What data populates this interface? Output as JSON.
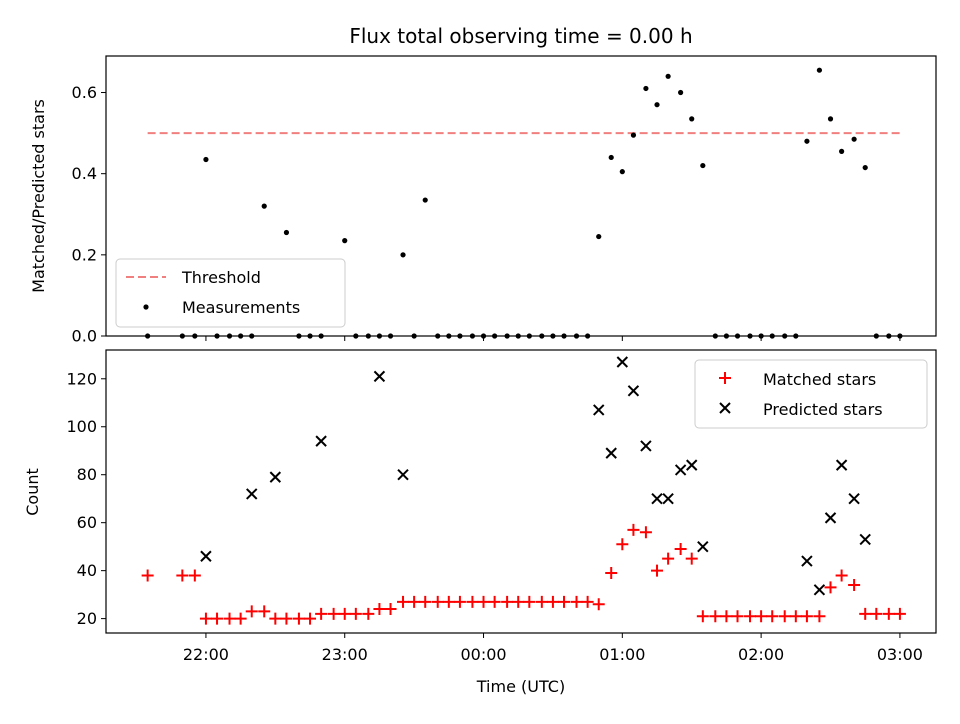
{
  "chart_data": [
    {
      "type": "scatter",
      "title": "Flux total observing time = 0.00 h",
      "xlabel": "",
      "ylabel": "Matched/Predicted stars",
      "ylim": [
        0,
        0.69
      ],
      "xlim": [
        -2.72,
        3.26
      ],
      "yticks": [
        "0.0",
        "0.2",
        "0.4",
        "0.6"
      ],
      "legend": {
        "placement": "lower-left",
        "entries": [
          "Threshold",
          "Measurements"
        ]
      },
      "threshold": {
        "name": "Threshold",
        "value": 0.5,
        "x_start": -2.42,
        "x_end": 3.0,
        "color": "#f08080",
        "style": "dashed"
      },
      "series": [
        {
          "name": "Measurements",
          "color": "#000000",
          "x": [
            -2.42,
            -2.17,
            -2.08,
            -2.0,
            -1.92,
            -1.83,
            -1.75,
            -1.67,
            -1.58,
            -1.42,
            -1.33,
            -1.25,
            -1.17,
            -1.0,
            -0.92,
            -0.83,
            -0.75,
            -0.67,
            -0.58,
            -0.5,
            -0.42,
            -0.33,
            -0.25,
            -0.17,
            -0.08,
            0.0,
            0.08,
            0.17,
            0.25,
            0.33,
            0.42,
            0.5,
            0.58,
            0.67,
            0.75,
            0.83,
            0.92,
            1.0,
            1.08,
            1.17,
            1.25,
            1.33,
            1.42,
            1.5,
            1.58,
            1.67,
            1.75,
            1.83,
            1.92,
            2.0,
            2.08,
            2.17,
            2.25,
            2.33,
            2.42,
            2.5,
            2.58,
            2.67,
            2.75,
            2.83,
            2.92,
            3.0
          ],
          "y": [
            0,
            0,
            0,
            0.435,
            0,
            0,
            0,
            0,
            0.32,
            0.255,
            0,
            0,
            0,
            0.235,
            0,
            0,
            0,
            0,
            0.2,
            0,
            0.335,
            0,
            0,
            0,
            0,
            0,
            0,
            0,
            0,
            0,
            0,
            0,
            0,
            0,
            0,
            0.245,
            0.44,
            0.405,
            0.495,
            0.61,
            0.57,
            0.64,
            0.6,
            0.535,
            0.42,
            0,
            0,
            0,
            0,
            0,
            0,
            0,
            0,
            0.48,
            0.655,
            0.535,
            0.455,
            0.485,
            0.415,
            0,
            0,
            0
          ]
        }
      ]
    },
    {
      "type": "scatter",
      "title": "",
      "xlabel": "Time (UTC)",
      "ylabel": "Count",
      "ylim": [
        14,
        132
      ],
      "xlim": [
        -2.72,
        3.26
      ],
      "yticks": [
        "20",
        "40",
        "60",
        "80",
        "100",
        "120"
      ],
      "xticks": [
        "22:00",
        "23:00",
        "00:00",
        "01:00",
        "02:00",
        "03:00"
      ],
      "xtick_values": [
        -2,
        -1,
        0,
        1,
        2,
        3
      ],
      "legend": {
        "placement": "top-right",
        "entries": [
          "Matched stars",
          "Predicted stars"
        ]
      },
      "series": [
        {
          "name": "Matched stars",
          "marker": "plus",
          "color": "#ff0000",
          "x": [
            -2.42,
            -2.17,
            -2.08,
            -2.0,
            -1.92,
            -1.83,
            -1.75,
            -1.67,
            -1.58,
            -1.5,
            -1.42,
            -1.33,
            -1.25,
            -1.17,
            -1.08,
            -1.0,
            -0.92,
            -0.83,
            -0.75,
            -0.67,
            -0.58,
            -0.5,
            -0.42,
            -0.33,
            -0.25,
            -0.17,
            -0.08,
            0.0,
            0.08,
            0.17,
            0.25,
            0.33,
            0.42,
            0.5,
            0.58,
            0.67,
            0.75,
            0.83,
            0.92,
            1.0,
            1.08,
            1.17,
            1.25,
            1.33,
            1.42,
            1.5,
            1.58,
            1.67,
            1.75,
            1.83,
            1.92,
            2.0,
            2.08,
            2.17,
            2.25,
            2.33,
            2.42,
            2.5,
            2.58,
            2.67,
            2.75,
            2.83,
            2.92,
            3.0
          ],
          "y": [
            38,
            38,
            38,
            20,
            20,
            20,
            20,
            23,
            23,
            20,
            20,
            20,
            20,
            22,
            22,
            22,
            22,
            22,
            24,
            24,
            27,
            27,
            27,
            27,
            27,
            27,
            27,
            27,
            27,
            27,
            27,
            27,
            27,
            27,
            27,
            27,
            27,
            26,
            39,
            51,
            57,
            56,
            40,
            45,
            49,
            45,
            21,
            21,
            21,
            21,
            21,
            21,
            21,
            21,
            21,
            21,
            21,
            33,
            38,
            34,
            22,
            22,
            22,
            22
          ]
        },
        {
          "name": "Predicted stars",
          "marker": "x",
          "color": "#000000",
          "x": [
            -2.0,
            -1.67,
            -1.5,
            -1.17,
            -0.75,
            -0.58,
            0.83,
            0.92,
            1.0,
            1.08,
            1.17,
            1.25,
            1.33,
            1.42,
            1.5,
            1.58,
            2.33,
            2.42,
            2.5,
            2.58,
            2.67,
            2.75
          ],
          "y": [
            46,
            72,
            79,
            94,
            121,
            80,
            107,
            89,
            127,
            115,
            92,
            70,
            70,
            82,
            84,
            50,
            44,
            32,
            62,
            84,
            70,
            53
          ]
        }
      ]
    }
  ]
}
